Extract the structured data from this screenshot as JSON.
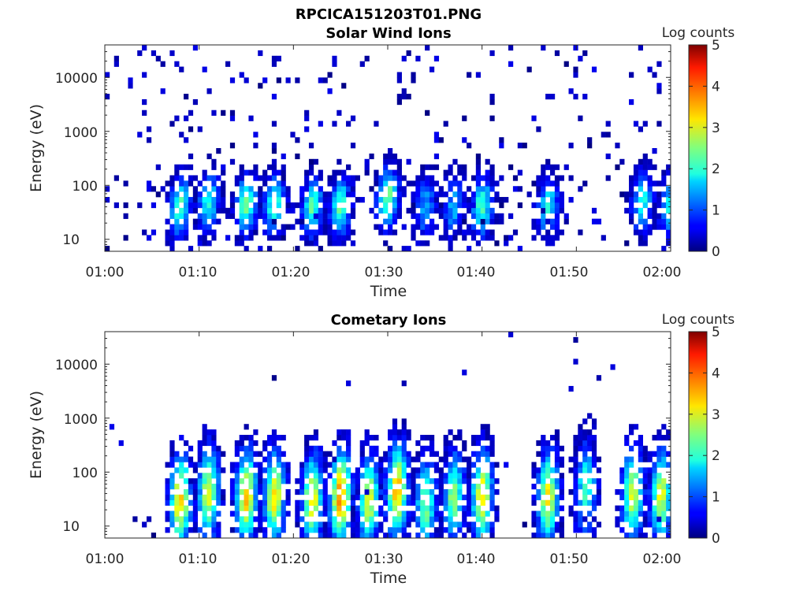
{
  "figure_title": "RPCICA151203T01.PNG",
  "chart_data": [
    {
      "type": "heatmap",
      "title": "Solar Wind Ions",
      "xlabel": "Time",
      "ylabel": "Energy (eV)",
      "x_ticks": [
        "01:00",
        "01:10",
        "01:20",
        "01:30",
        "01:40",
        "01:50",
        "02:00"
      ],
      "xlim": [
        "01:00",
        "02:00"
      ],
      "y_ticks": [
        {
          "value": 10,
          "label": "10"
        },
        {
          "value": 100,
          "label": "100"
        },
        {
          "value": 1000,
          "label": "1000"
        },
        {
          "value": 10000,
          "label": "10000"
        }
      ],
      "ylim": [
        6,
        40000
      ],
      "y_scale": "log",
      "colorbar": {
        "label": "Log counts",
        "ticks": [
          0,
          1,
          2,
          3,
          4,
          5
        ],
        "range": [
          0,
          5
        ],
        "colormap": "jet"
      },
      "bursts": [
        {
          "t": "01:08",
          "peak_log_counts": 2.3,
          "energy_eV": 40
        },
        {
          "t": "01:11",
          "peak_log_counts": 2.0,
          "energy_eV": 50
        },
        {
          "t": "01:15",
          "peak_log_counts": 2.4,
          "energy_eV": 45
        },
        {
          "t": "01:18",
          "peak_log_counts": 2.3,
          "energy_eV": 45
        },
        {
          "t": "01:22",
          "peak_log_counts": 2.3,
          "energy_eV": 40
        },
        {
          "t": "01:25",
          "peak_log_counts": 2.3,
          "energy_eV": 40
        },
        {
          "t": "01:30",
          "peak_log_counts": 2.5,
          "energy_eV": 60
        },
        {
          "t": "01:34",
          "peak_log_counts": 1.5,
          "energy_eV": 40
        },
        {
          "t": "01:37",
          "peak_log_counts": 1.5,
          "energy_eV": 40
        },
        {
          "t": "01:40",
          "peak_log_counts": 2.3,
          "energy_eV": 40
        },
        {
          "t": "01:47",
          "peak_log_counts": 2.0,
          "energy_eV": 40
        },
        {
          "t": "01:57",
          "peak_log_counts": 2.0,
          "energy_eV": 50
        },
        {
          "t": "02:00",
          "peak_log_counts": 2.0,
          "energy_eV": 40
        }
      ]
    },
    {
      "type": "heatmap",
      "title": "Cometary Ions",
      "xlabel": "Time",
      "ylabel": "Energy (eV)",
      "x_ticks": [
        "01:00",
        "01:10",
        "01:20",
        "01:30",
        "01:40",
        "01:50",
        "02:00"
      ],
      "xlim": [
        "01:00",
        "02:00"
      ],
      "y_ticks": [
        {
          "value": 10,
          "label": "10"
        },
        {
          "value": 100,
          "label": "100"
        },
        {
          "value": 1000,
          "label": "1000"
        },
        {
          "value": 10000,
          "label": "10000"
        }
      ],
      "ylim": [
        6,
        40000
      ],
      "y_scale": "log",
      "colorbar": {
        "label": "Log counts",
        "ticks": [
          0,
          1,
          2,
          3,
          4,
          5
        ],
        "range": [
          0,
          5
        ],
        "colormap": "jet"
      },
      "bursts": [
        {
          "t": "01:08",
          "peak_log_counts": 3.4,
          "energy_eV": 30
        },
        {
          "t": "01:11",
          "peak_log_counts": 3.0,
          "energy_eV": 40
        },
        {
          "t": "01:15",
          "peak_log_counts": 3.4,
          "energy_eV": 35
        },
        {
          "t": "01:18",
          "peak_log_counts": 3.2,
          "energy_eV": 35
        },
        {
          "t": "01:22",
          "peak_log_counts": 3.2,
          "energy_eV": 30
        },
        {
          "t": "01:25",
          "peak_log_counts": 3.8,
          "energy_eV": 35
        },
        {
          "t": "01:28",
          "peak_log_counts": 3.0,
          "energy_eV": 30
        },
        {
          "t": "01:31",
          "peak_log_counts": 3.5,
          "energy_eV": 45
        },
        {
          "t": "01:34",
          "peak_log_counts": 2.5,
          "energy_eV": 25
        },
        {
          "t": "01:37",
          "peak_log_counts": 2.6,
          "energy_eV": 35
        },
        {
          "t": "01:40",
          "peak_log_counts": 3.3,
          "energy_eV": 35
        },
        {
          "t": "01:47",
          "peak_log_counts": 3.2,
          "energy_eV": 35
        },
        {
          "t": "01:51",
          "peak_log_counts": 2.2,
          "energy_eV": 50
        },
        {
          "t": "01:56",
          "peak_log_counts": 3.0,
          "energy_eV": 40
        },
        {
          "t": "01:59",
          "peak_log_counts": 3.0,
          "energy_eV": 35
        }
      ]
    }
  ]
}
